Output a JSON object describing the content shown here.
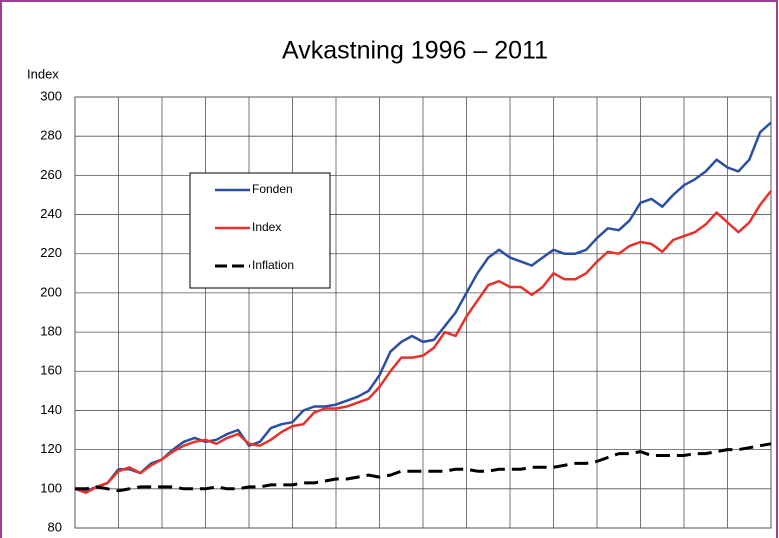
{
  "chart_data": {
    "type": "line",
    "title": "Avkastning 1996 – 2011",
    "y_label": "Index",
    "ylim": [
      80,
      300
    ],
    "yticks": [
      80,
      100,
      120,
      140,
      160,
      180,
      200,
      220,
      240,
      260,
      280,
      300
    ],
    "grid": true,
    "legend": "upper-left",
    "series": [
      {
        "name": "Fonden",
        "color": "#2a4fa3",
        "dash": false,
        "values": [
          100,
          99,
          101,
          103,
          110,
          110,
          108,
          113,
          115,
          120,
          124,
          126,
          124,
          125,
          128,
          130,
          122,
          124,
          131,
          133,
          134,
          140,
          142,
          142,
          143,
          145,
          147,
          150,
          158,
          170,
          175,
          178,
          175,
          176,
          183,
          190,
          200,
          210,
          218,
          222,
          218,
          216,
          214,
          218,
          222,
          220,
          220,
          222,
          228,
          233,
          232,
          237,
          246,
          248,
          244,
          250,
          255,
          258,
          262,
          268,
          264,
          262,
          268,
          282,
          287
        ]
      },
      {
        "name": "Index",
        "color": "#e8312a",
        "dash": false,
        "values": [
          100,
          98,
          101,
          103,
          109,
          111,
          108,
          112,
          115,
          119,
          122,
          124,
          125,
          123,
          126,
          128,
          123,
          122,
          125,
          129,
          132,
          133,
          139,
          141,
          141,
          142,
          144,
          146,
          152,
          160,
          167,
          167,
          168,
          172,
          180,
          178,
          188,
          196,
          204,
          206,
          203,
          203,
          199,
          203,
          210,
          207,
          207,
          210,
          216,
          221,
          220,
          224,
          226,
          225,
          221,
          227,
          229,
          231,
          235,
          241,
          236,
          231,
          236,
          245,
          252
        ]
      },
      {
        "name": "Inflation",
        "color": "#000000",
        "dash": true,
        "values": [
          100,
          100,
          101,
          100,
          99,
          100,
          101,
          101,
          101,
          101,
          100,
          100,
          100,
          101,
          100,
          100,
          101,
          101,
          102,
          102,
          102,
          103,
          103,
          104,
          105,
          105,
          106,
          107,
          106,
          107,
          109,
          109,
          109,
          109,
          109,
          110,
          110,
          109,
          109,
          110,
          110,
          110,
          111,
          111,
          111,
          112,
          113,
          113,
          114,
          116,
          118,
          118,
          119,
          117,
          117,
          117,
          117,
          118,
          118,
          119,
          120,
          120,
          121,
          122,
          123
        ]
      }
    ]
  }
}
